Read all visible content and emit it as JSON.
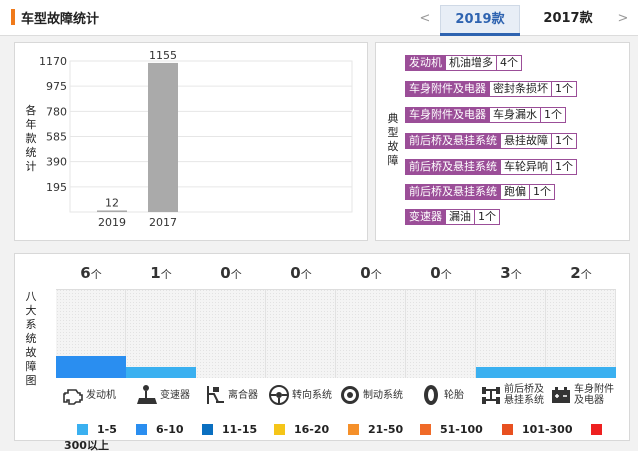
{
  "header": {
    "title": "车型故障统计",
    "prev_label": "<",
    "next_label": ">",
    "tabs": [
      {
        "label": "2019款",
        "active": true
      },
      {
        "label": "2017款",
        "active": false
      }
    ]
  },
  "chart_data": {
    "type": "bar",
    "categories": [
      "2019",
      "2017"
    ],
    "values": [
      12,
      1155
    ],
    "ylabel": "各年款统计",
    "yticks": [
      195,
      390,
      585,
      780,
      975,
      1170
    ],
    "ylim": [
      0,
      1170
    ],
    "grid": true,
    "bar_color": "#aaaaaa"
  },
  "typical_faults": {
    "label": "典型故障",
    "items": [
      {
        "category": "发动机",
        "issue": "机油增多",
        "count": "4个"
      },
      {
        "category": "车身附件及电器",
        "issue": "密封条损坏",
        "count": "1个"
      },
      {
        "category": "车身附件及电器",
        "issue": "车身漏水",
        "count": "1个"
      },
      {
        "category": "前后桥及悬挂系统",
        "issue": "悬挂故障",
        "count": "1个"
      },
      {
        "category": "前后桥及悬挂系统",
        "issue": "车轮异响",
        "count": "1个"
      },
      {
        "category": "前后桥及悬挂系统",
        "issue": "跑偏",
        "count": "1个"
      },
      {
        "category": "变速器",
        "issue": "漏油",
        "count": "1个"
      }
    ]
  },
  "system_faults": {
    "label": "八大系统故障图",
    "unit": "个",
    "items": [
      {
        "count": 6,
        "system": "发动机",
        "icon": "engine-icon"
      },
      {
        "count": 1,
        "system": "变速器",
        "icon": "gear-shift-icon"
      },
      {
        "count": 0,
        "system": "离合器",
        "icon": "clutch-pedal-icon"
      },
      {
        "count": 0,
        "system": "转向系统",
        "icon": "steering-wheel-icon"
      },
      {
        "count": 0,
        "system": "制动系统",
        "icon": "brake-disc-icon"
      },
      {
        "count": 0,
        "system": "轮胎",
        "icon": "tire-icon"
      },
      {
        "count": 3,
        "system": "前后桥及悬挂系统",
        "icon": "axle-icon"
      },
      {
        "count": 2,
        "system": "车身附件及电器",
        "icon": "battery-icon"
      }
    ]
  },
  "legend": [
    {
      "range": "1-5",
      "color": "#3ab0f0"
    },
    {
      "range": "6-10",
      "color": "#2a8ef0"
    },
    {
      "range": "11-15",
      "color": "#0a6fc0"
    },
    {
      "range": "16-20",
      "color": "#f5c518"
    },
    {
      "range": "21-50",
      "color": "#f5902a"
    },
    {
      "range": "51-100",
      "color": "#f06a28"
    },
    {
      "range": "101-300",
      "color": "#e85020"
    },
    {
      "range": "300以上",
      "color": "#ee2020"
    }
  ]
}
